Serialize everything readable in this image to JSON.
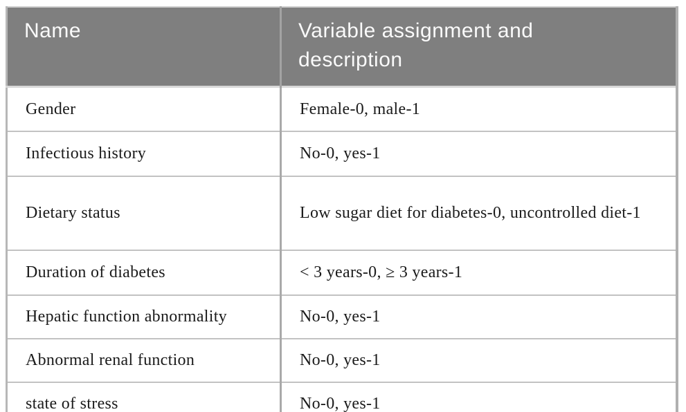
{
  "table": {
    "headers": [
      "Name",
      "Variable assignment and description"
    ],
    "rows": [
      {
        "name": "Gender",
        "description": "Female-0, male-1"
      },
      {
        "name": "Infectious history",
        "description": "No-0, yes-1"
      },
      {
        "name": "Dietary status",
        "description": "Low sugar diet for diabetes-0, uncontrolled diet-1"
      },
      {
        "name": "Duration of diabetes",
        "description": "< 3 years-0, ≥ 3 years-1"
      },
      {
        "name": "Hepatic function abnormality",
        "description": "No-0, yes-1"
      },
      {
        "name": "Abnormal renal function",
        "description": "No-0, yes-1"
      },
      {
        "name": "state of stress",
        "description": "No-0, yes-1"
      }
    ],
    "colors": {
      "header_bg": "#7f7f7f",
      "header_text": "#fafafa",
      "body_text": "#1b1b1b",
      "row_divider": "#c2c2c2",
      "column_divider": "#a9a9a9",
      "outer_border": "#b0b0b0",
      "bottom_border": "#a6a6a6"
    }
  }
}
